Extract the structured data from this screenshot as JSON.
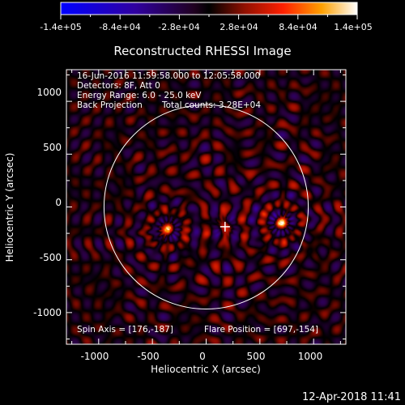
{
  "title": "Reconstructed RHESSI Image",
  "colorbar": {
    "tick_labels": [
      "-1.4e+05",
      "-8.4e+04",
      "-2.8e+04",
      "2.8e+04",
      "8.4e+04",
      "1.4e+05"
    ],
    "range": [
      -140000,
      140000
    ]
  },
  "info": {
    "line1": "16-Jun-2016 11:59:58.000 to 12:05:58.000",
    "line2": "Detectors: 8F, Att 0",
    "line3": "Energy Range: 6.0 - 25.0 keV",
    "line4_left": "Back Projection",
    "line4_right": "Total counts: 3.28E+04",
    "spin_axis": "Spin Axis = [176,-187]",
    "flare_position": "Flare Position = [697,-154]"
  },
  "axes": {
    "xlabel": "Heliocentric X (arcsec)",
    "ylabel": "Heliocentric Y (arcsec)",
    "xticks": [
      -1000,
      -500,
      0,
      500,
      1000
    ],
    "yticks": [
      -1000,
      -500,
      0,
      500,
      1000
    ],
    "xrange": [
      -1300,
      1300
    ],
    "yrange": [
      -1300,
      1300
    ]
  },
  "sources": [
    {
      "x": 697,
      "y": -154,
      "strength": 1.0
    },
    {
      "x": -350,
      "y": -210,
      "strength": 0.85
    },
    {
      "x": 176,
      "y": -187,
      "strength": 0.35
    }
  ],
  "spin_axis_marker": {
    "x": 176,
    "y": -187
  },
  "solar_limb_radius": 950,
  "timestamp": "12-Apr-2018 11:41"
}
